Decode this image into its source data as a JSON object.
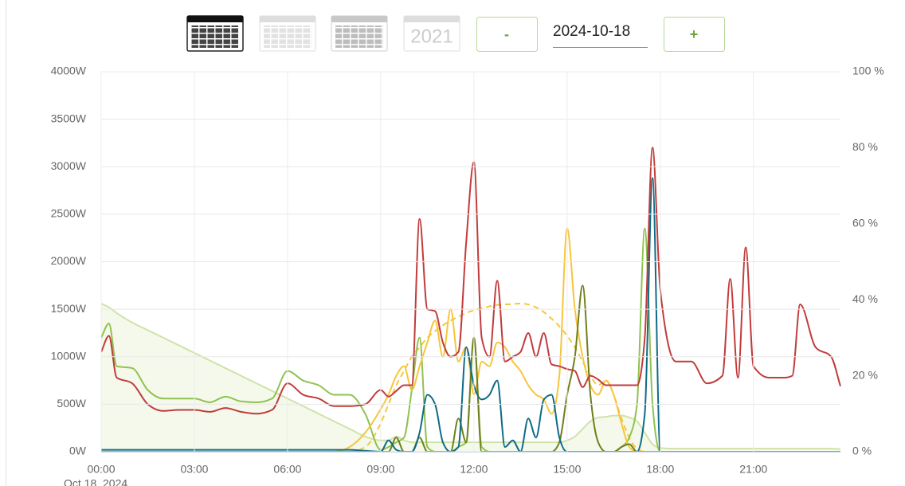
{
  "toolbar": {
    "year_button": "2021",
    "minus": "-",
    "date": "2024-10-18",
    "plus": "+"
  },
  "chart_data": {
    "type": "line",
    "date_label": "Oct 18, 2024",
    "x": [
      0,
      0.25,
      0.5,
      1,
      1.5,
      2,
      2.5,
      3,
      3.5,
      4,
      4.5,
      5,
      5.5,
      6,
      6.5,
      7,
      7.5,
      8,
      8.5,
      9,
      9.25,
      9.5,
      9.75,
      10,
      10.25,
      10.5,
      10.75,
      11,
      11.25,
      11.5,
      11.75,
      12,
      12.25,
      12.5,
      12.75,
      13,
      13.25,
      13.5,
      13.75,
      14,
      14.25,
      14.5,
      14.75,
      15,
      15.25,
      15.5,
      15.75,
      16,
      16.25,
      16.5,
      16.75,
      17,
      17.25,
      17.5,
      17.75,
      18,
      18.5,
      19,
      19.5,
      20,
      20.25,
      20.5,
      20.75,
      21,
      21.5,
      22,
      22.25,
      22.5,
      23,
      23.5,
      23.8
    ],
    "xlim": [
      0,
      23.8
    ],
    "xticks": [
      {
        "value": 0,
        "label": "00:00"
      },
      {
        "value": 3,
        "label": "03:00"
      },
      {
        "value": 6,
        "label": "06:00"
      },
      {
        "value": 9,
        "label": "09:00"
      },
      {
        "value": 12,
        "label": "12:00"
      },
      {
        "value": 15,
        "label": "15:00"
      },
      {
        "value": 18,
        "label": "18:00"
      },
      {
        "value": 21,
        "label": "21:00"
      }
    ],
    "ylim": [
      0,
      4000
    ],
    "yticks": [
      {
        "value": 0,
        "label": "0W"
      },
      {
        "value": 500,
        "label": "500W"
      },
      {
        "value": 1000,
        "label": "1000W"
      },
      {
        "value": 1500,
        "label": "1500W"
      },
      {
        "value": 2000,
        "label": "2000W"
      },
      {
        "value": 2500,
        "label": "2500W"
      },
      {
        "value": 3000,
        "label": "3000W"
      },
      {
        "value": 3500,
        "label": "3500W"
      },
      {
        "value": 4000,
        "label": "4000W"
      }
    ],
    "y2lim": [
      0,
      100
    ],
    "y2ticks": [
      {
        "value": 0,
        "label": "0 %"
      },
      {
        "value": 20,
        "label": "20 %"
      },
      {
        "value": 40,
        "label": "40 %"
      },
      {
        "value": 60,
        "label": "60 %"
      },
      {
        "value": 80,
        "label": "80 %"
      },
      {
        "value": 100,
        "label": "100 %"
      }
    ],
    "grid": true,
    "series": [
      {
        "color": "#cfe3a8",
        "axis": "y2",
        "fill": true,
        "values": [
          39,
          38,
          36.5,
          34,
          32,
          30,
          28,
          26,
          24,
          22,
          20,
          18,
          16,
          14,
          12,
          10,
          8,
          6,
          4,
          3,
          3,
          4,
          3,
          2.5,
          2.5,
          2.5,
          2.5,
          2.5,
          2.5,
          2.5,
          2.5,
          2.5,
          2.5,
          2.5,
          2.5,
          2.5,
          2.5,
          2.5,
          2.5,
          2.5,
          2.5,
          2.5,
          2.5,
          3,
          4,
          6,
          8,
          9,
          9.2,
          9.5,
          9.5,
          9,
          8,
          5,
          2,
          1,
          0.8,
          0.8,
          0.8,
          0.8,
          0.8,
          0.8,
          0.8,
          0.8,
          0.8,
          0.8,
          0.8,
          0.8,
          0.8,
          0.8,
          0.7
        ]
      },
      {
        "color": "#f7c53c",
        "dashed": true,
        "values": [
          0,
          0,
          0,
          0,
          0,
          0,
          0,
          0,
          0,
          0,
          0,
          0,
          0,
          0,
          0,
          0,
          0,
          0,
          50,
          300,
          500,
          700,
          850,
          1000,
          1100,
          1200,
          1270,
          1330,
          1380,
          1420,
          1460,
          1490,
          1510,
          1530,
          1545,
          1550,
          1555,
          1560,
          1550,
          1520,
          1470,
          1400,
          1320,
          1220,
          1100,
          950,
          800,
          700,
          750,
          600,
          350,
          150,
          30,
          0,
          0,
          0,
          0,
          0,
          0,
          0,
          0,
          0,
          0,
          0,
          0,
          0,
          0,
          0,
          0,
          0,
          0
        ]
      },
      {
        "color": "#8fc24f",
        "values": [
          1200,
          1350,
          900,
          880,
          650,
          560,
          560,
          560,
          520,
          580,
          530,
          520,
          560,
          850,
          750,
          700,
          600,
          600,
          400,
          20,
          50,
          100,
          150,
          650,
          1200,
          50,
          0,
          0,
          0,
          50,
          100,
          1200,
          50,
          0,
          0,
          0,
          0,
          0,
          0,
          0,
          0,
          0,
          0,
          0,
          0,
          0,
          0,
          0,
          0,
          0,
          50,
          150,
          500,
          2350,
          500,
          0,
          0,
          0,
          0,
          0,
          0,
          0,
          0,
          0,
          0,
          0,
          0,
          0,
          0,
          0,
          0
        ]
      },
      {
        "color": "#f7c53c",
        "values": [
          0,
          0,
          0,
          0,
          0,
          0,
          0,
          0,
          0,
          0,
          0,
          0,
          0,
          0,
          0,
          0,
          0,
          50,
          200,
          450,
          600,
          800,
          900,
          650,
          900,
          1150,
          1380,
          1000,
          1500,
          950,
          1100,
          600,
          950,
          900,
          1150,
          1100,
          950,
          850,
          700,
          600,
          550,
          400,
          800,
          2350,
          1500,
          1000,
          700,
          600,
          750,
          600,
          300,
          50,
          0,
          0,
          0,
          0,
          0,
          0,
          0,
          0,
          0,
          0,
          0,
          0,
          0,
          0,
          0,
          0,
          0,
          0,
          0
        ]
      },
      {
        "color": "#6f7f1c",
        "values": [
          0,
          0,
          0,
          0,
          0,
          0,
          0,
          0,
          0,
          0,
          0,
          0,
          0,
          0,
          0,
          0,
          0,
          0,
          0,
          0,
          0,
          150,
          0,
          0,
          150,
          0,
          0,
          0,
          0,
          350,
          100,
          1200,
          0,
          0,
          0,
          0,
          0,
          0,
          0,
          0,
          0,
          0,
          100,
          600,
          1000,
          1750,
          600,
          100,
          0,
          0,
          50,
          80,
          0,
          0,
          0,
          0,
          0,
          0,
          0,
          0,
          0,
          0,
          0,
          0,
          0,
          0,
          0,
          0,
          0,
          0,
          0
        ]
      },
      {
        "color": "#0f6b87",
        "values": [
          20,
          20,
          20,
          20,
          20,
          20,
          20,
          20,
          20,
          20,
          20,
          20,
          20,
          20,
          20,
          20,
          20,
          20,
          10,
          0,
          120,
          20,
          0,
          0,
          200,
          600,
          500,
          100,
          0,
          50,
          1100,
          700,
          550,
          600,
          750,
          50,
          120,
          0,
          350,
          150,
          550,
          600,
          150,
          0,
          0,
          0,
          0,
          0,
          0,
          0,
          0,
          0,
          0,
          400,
          2880,
          0,
          0,
          0,
          0,
          0,
          0,
          0,
          0,
          0,
          0,
          0,
          0,
          0,
          0,
          0,
          0
        ]
      },
      {
        "color": "#c23b3b",
        "values": [
          1050,
          1220,
          780,
          720,
          500,
          430,
          440,
          440,
          420,
          460,
          420,
          400,
          440,
          720,
          600,
          560,
          480,
          480,
          500,
          650,
          580,
          640,
          700,
          700,
          2450,
          1500,
          1480,
          1150,
          1000,
          1050,
          2200,
          3050,
          1200,
          1000,
          1800,
          950,
          1000,
          1050,
          1250,
          1000,
          1250,
          920,
          900,
          870,
          850,
          680,
          800,
          760,
          700,
          700,
          700,
          700,
          700,
          1200,
          3200,
          1700,
          950,
          950,
          720,
          800,
          1820,
          780,
          2150,
          900,
          780,
          780,
          800,
          1550,
          1100,
          1000,
          690
        ]
      }
    ]
  }
}
